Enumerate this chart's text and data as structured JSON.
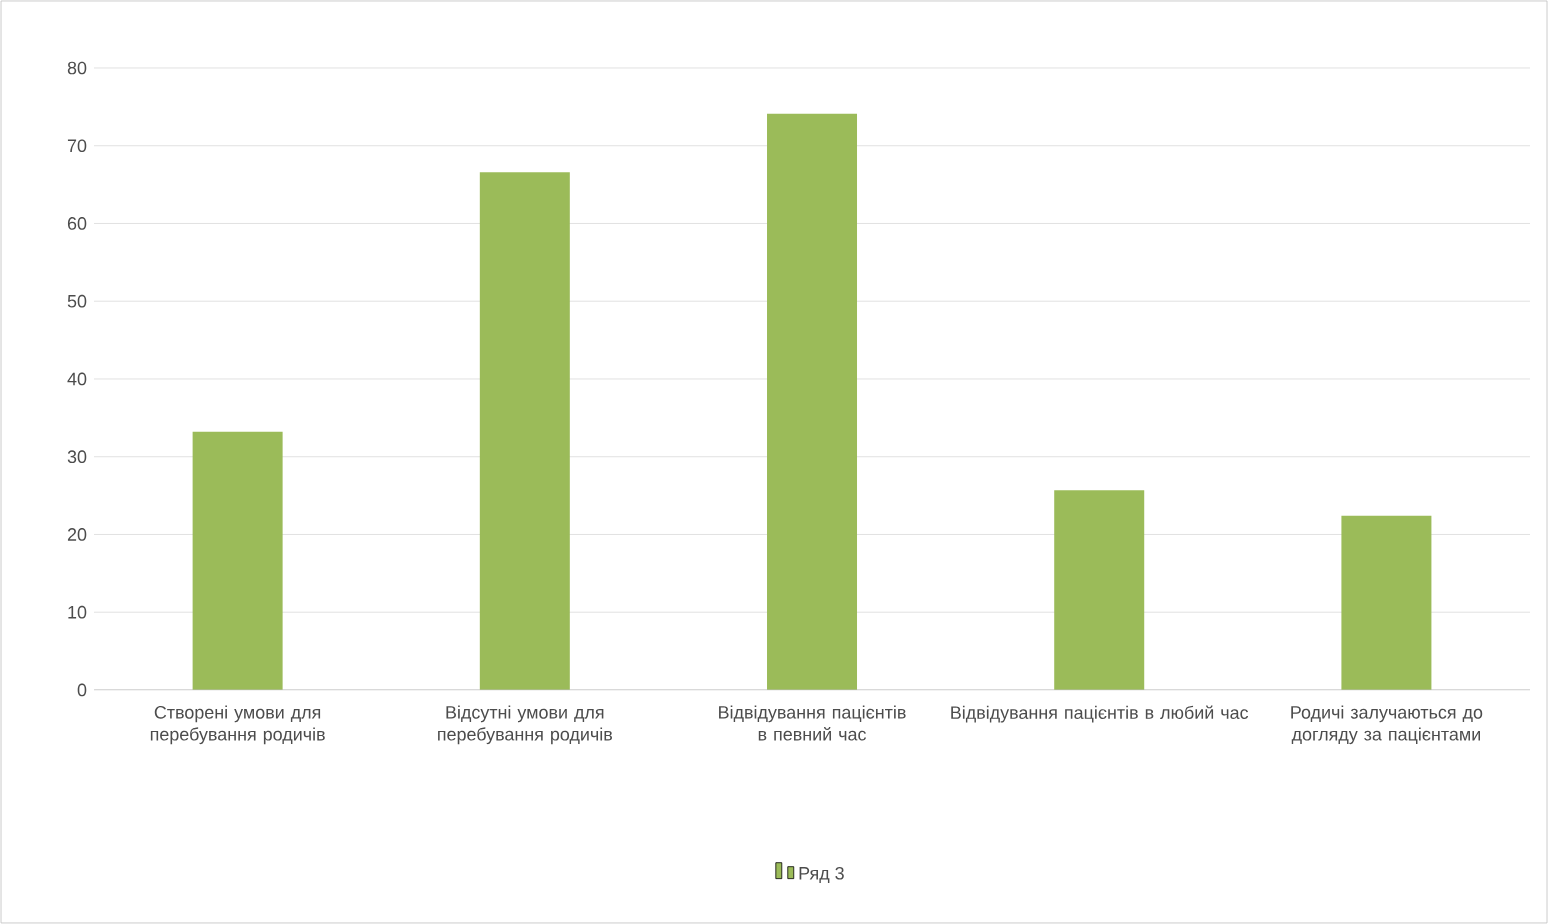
{
  "chart_data": {
    "type": "bar",
    "categories": [
      "Створені умови для перебування родичів",
      "Відсутні умови для перебування родичів",
      "Відвідування пацієнтів в певний час",
      "Відвідування пацієнтів в любий час",
      "Родичі залучаються до догляду за пацієнтами"
    ],
    "series": [
      {
        "name": "Ряд 3",
        "color": "#9bbb59",
        "values": [
          33.2,
          66.6,
          74.1,
          25.7,
          22.4
        ]
      }
    ],
    "ylim": [
      0,
      80
    ],
    "yticks": [
      0,
      10,
      20,
      30,
      40,
      50,
      60,
      70,
      80
    ],
    "grid": "y",
    "legend": "bottom"
  }
}
